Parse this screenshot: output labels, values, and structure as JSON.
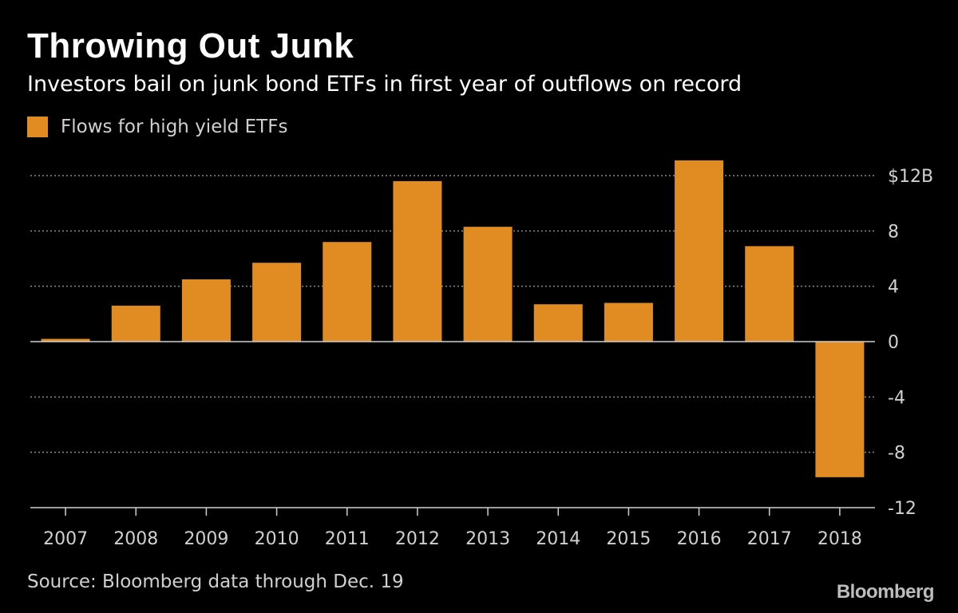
{
  "header": {
    "title": "Throwing Out Junk",
    "subtitle": "Investors bail on junk bond ETFs in first year of outflows on record"
  },
  "legend": {
    "label": "Flows for high yield ETFs"
  },
  "footer": {
    "source": "Source: Bloomberg data through Dec. 19",
    "brand": "Bloomberg"
  },
  "colors": {
    "bar": "#e08c23",
    "background": "#000000",
    "grid": "#8a8a8a",
    "axis": "#cfcfcf"
  },
  "chart_data": {
    "type": "bar",
    "title": "Throwing Out Junk",
    "subtitle": "Investors bail on junk bond ETFs in first year of outflows on record",
    "xlabel": "",
    "ylabel": "",
    "unit": "$B",
    "categories": [
      "2007",
      "2008",
      "2009",
      "2010",
      "2011",
      "2012",
      "2013",
      "2014",
      "2015",
      "2016",
      "2017",
      "2018"
    ],
    "series": [
      {
        "name": "Flows for high yield ETFs",
        "values": [
          0.2,
          2.6,
          4.5,
          5.7,
          7.2,
          11.6,
          8.3,
          2.7,
          2.8,
          13.1,
          6.9,
          -9.8
        ]
      }
    ],
    "ylim": [
      -12,
      12
    ],
    "yticks": [
      12,
      8,
      4,
      0,
      -4,
      -8,
      -12
    ],
    "ytick_labels": [
      "$12B",
      "8",
      "4",
      "0",
      "-4",
      "-8",
      "-12"
    ],
    "grid": true,
    "legend_position": "top-left"
  }
}
